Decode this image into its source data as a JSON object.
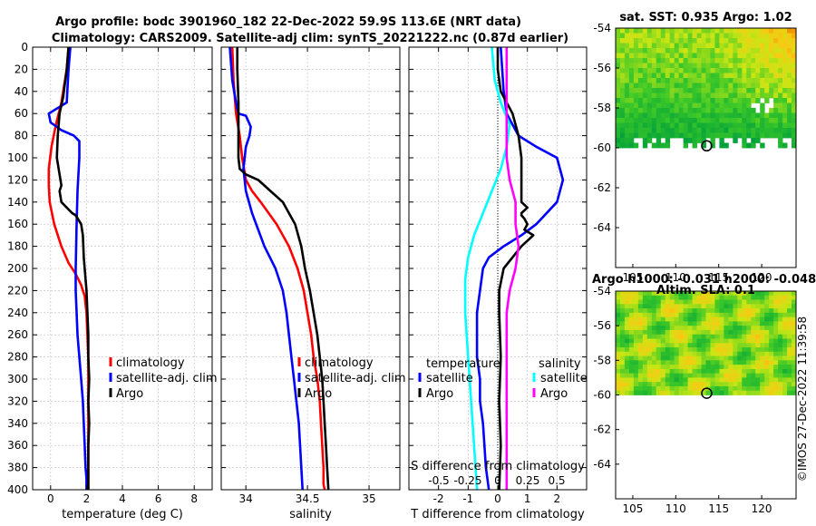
{
  "title": {
    "line1": "Argo profile: bodc 3901960_182 22-Dec-2022 59.9S 113.6E (NRT data)",
    "line2": "Climatology: CARS2009. Satellite-adj clim: synTS_20221222.nc (0.87d earlier)"
  },
  "copyright": "©IMOS 27-Dec-2022 11:39:58",
  "colors": {
    "climatology": "#ff0000",
    "satellite": "#0000ff",
    "argo": "#000000",
    "sat_salinity": "#00ffff",
    "argo_salinity": "#ff00ff",
    "map_land": "#ffffff"
  },
  "chart_data": [
    {
      "id": "temperature",
      "type": "line",
      "xlabel": "temperature (deg C)",
      "ylabel": "",
      "xlim": [
        -1,
        9
      ],
      "ylim": [
        400,
        0
      ],
      "xticks": [
        0,
        2,
        4,
        6,
        8
      ],
      "yticks": [
        0,
        20,
        40,
        60,
        80,
        100,
        120,
        140,
        160,
        180,
        200,
        220,
        240,
        260,
        280,
        300,
        320,
        340,
        360,
        380,
        400
      ],
      "legend": [
        "climatology",
        "satellite-adj. clim",
        "Argo"
      ],
      "series": [
        {
          "name": "climatology",
          "color": "#ff0000",
          "x": [
            1.0,
            0.9,
            0.6,
            0.3,
            0.05,
            -0.1,
            -0.1,
            -0.05,
            0.2,
            0.6,
            1.0,
            1.4,
            1.7,
            1.9,
            2.0,
            2.05,
            2.1,
            2.1,
            2.1,
            2.1,
            2.1,
            2.1,
            2.1,
            2.1,
            2.1
          ],
          "y": [
            0,
            20,
            50,
            70,
            90,
            110,
            125,
            140,
            160,
            180,
            195,
            205,
            215,
            225,
            240,
            260,
            280,
            300,
            320,
            340,
            360,
            380,
            390,
            395,
            400
          ]
        },
        {
          "name": "satellite-adj. clim",
          "color": "#0000ff",
          "x": [
            1.1,
            1.0,
            0.9,
            0.4,
            -0.1,
            0.0,
            0.6,
            1.3,
            1.6,
            1.6,
            1.5,
            1.45,
            1.4,
            1.4,
            1.45,
            1.5,
            1.6,
            1.7,
            1.8,
            1.85,
            1.9,
            1.95,
            2.0,
            2.0
          ],
          "y": [
            0,
            20,
            50,
            55,
            60,
            68,
            75,
            80,
            85,
            100,
            130,
            160,
            200,
            220,
            240,
            260,
            280,
            300,
            320,
            340,
            360,
            380,
            390,
            400
          ]
        },
        {
          "name": "Argo",
          "color": "#000000",
          "x": [
            1.0,
            0.9,
            0.7,
            0.5,
            0.4,
            0.35,
            0.5,
            0.6,
            0.5,
            0.6,
            0.9,
            1.2,
            1.4,
            1.7,
            1.8,
            1.85,
            1.9,
            2.0,
            2.05,
            2.1,
            2.1,
            2.15,
            2.1,
            2.15,
            2.1,
            2.1,
            2.1
          ],
          "y": [
            0,
            20,
            45,
            60,
            80,
            100,
            115,
            125,
            130,
            140,
            145,
            150,
            152,
            160,
            170,
            190,
            200,
            220,
            240,
            260,
            280,
            300,
            320,
            340,
            360,
            380,
            400
          ]
        }
      ]
    },
    {
      "id": "salinity",
      "type": "line",
      "xlabel": "salinity",
      "ylabel": "",
      "xlim": [
        33.8,
        35.25
      ],
      "ylim": [
        400,
        0
      ],
      "xticks": [
        34,
        34.5,
        35
      ],
      "legend": [
        "climatology",
        "satellite-adj. clim",
        "Argo"
      ],
      "series": [
        {
          "name": "climatology",
          "color": "#ff0000",
          "x": [
            33.89,
            33.9,
            33.92,
            33.95,
            33.97,
            34.0,
            34.05,
            34.12,
            34.25,
            34.35,
            34.42,
            34.47,
            34.5,
            34.53,
            34.55,
            34.58,
            34.6,
            34.61,
            34.62,
            34.63,
            34.63,
            34.64
          ],
          "y": [
            0,
            30,
            60,
            80,
            100,
            120,
            130,
            140,
            160,
            180,
            200,
            220,
            240,
            260,
            280,
            300,
            320,
            340,
            360,
            380,
            395,
            400
          ]
        },
        {
          "name": "satellite-adj. clim",
          "color": "#0000ff",
          "x": [
            33.87,
            33.89,
            33.92,
            33.94,
            34.0,
            34.04,
            34.03,
            34.0,
            33.98,
            34.0,
            34.05,
            34.15,
            34.24,
            34.3,
            34.33,
            34.35,
            34.37,
            34.39,
            34.41,
            34.43,
            34.46
          ],
          "y": [
            0,
            30,
            50,
            60,
            62,
            72,
            80,
            90,
            110,
            130,
            150,
            180,
            200,
            220,
            240,
            260,
            280,
            300,
            320,
            340,
            400
          ]
        },
        {
          "name": "Argo",
          "color": "#000000",
          "x": [
            33.93,
            33.93,
            33.94,
            33.94,
            33.94,
            33.95,
            34.0,
            34.1,
            34.2,
            34.3,
            34.35,
            34.4,
            34.45,
            34.48,
            34.52,
            34.55,
            34.58,
            34.6,
            34.62,
            34.63,
            34.64,
            34.65,
            34.66,
            34.67
          ],
          "y": [
            0,
            20,
            50,
            80,
            100,
            110,
            115,
            120,
            130,
            140,
            150,
            160,
            180,
            200,
            220,
            240,
            260,
            280,
            300,
            320,
            340,
            360,
            380,
            400
          ]
        }
      ]
    },
    {
      "id": "difference",
      "type": "line",
      "xlabel": "T difference from climatology",
      "top_xlabel": "S difference from climatology",
      "ylabel": "",
      "xlim": [
        -3,
        3
      ],
      "ylim": [
        400,
        0
      ],
      "xticks": [
        -2,
        -1,
        0,
        1,
        2
      ],
      "s_xticks": [
        "-0.5",
        "-0.25",
        "0",
        "0.25",
        "0.5"
      ],
      "legend_headers": [
        "temperature",
        "salinity"
      ],
      "legend": [
        "satellite",
        "Argo",
        "satellite",
        "Argo"
      ],
      "series": [
        {
          "name": "temperature satellite",
          "color": "#0000ff",
          "x": [
            0.1,
            0.2,
            0.3,
            0.5,
            0.7,
            1.3,
            2.0,
            2.2,
            2.0,
            1.3,
            0.8,
            0.2,
            -0.3,
            -0.5,
            -0.6,
            -0.7,
            -0.7,
            -0.7,
            -0.6,
            -0.6,
            -0.5,
            -0.4,
            -0.3
          ],
          "y": [
            0,
            40,
            60,
            70,
            80,
            90,
            100,
            120,
            140,
            160,
            170,
            180,
            190,
            200,
            220,
            240,
            260,
            280,
            300,
            320,
            340,
            380,
            400
          ]
        },
        {
          "name": "temperature Argo",
          "color": "#000000",
          "x": [
            0.0,
            0.0,
            0.1,
            0.5,
            0.7,
            0.8,
            0.8,
            0.8,
            0.8,
            1.0,
            0.8,
            0.8,
            0.9,
            1.0,
            0.9,
            1.2,
            0.8,
            0.2,
            0.05,
            0.05,
            0.1,
            0.05,
            0.1,
            0.05
          ],
          "y": [
            0,
            20,
            40,
            60,
            80,
            100,
            120,
            130,
            140,
            145,
            150,
            152,
            155,
            160,
            165,
            170,
            180,
            200,
            220,
            240,
            280,
            320,
            360,
            400
          ]
        },
        {
          "name": "salinity satellite",
          "color": "#00ffff",
          "x": [
            -0.2,
            -0.1,
            0.1,
            0.4,
            0.3,
            0.1,
            -0.2,
            -0.5,
            -0.8,
            -1.0,
            -1.1,
            -1.1,
            -1.0,
            -0.9,
            -0.8,
            -0.7
          ],
          "y": [
            0,
            30,
            50,
            70,
            90,
            110,
            130,
            150,
            170,
            190,
            210,
            240,
            280,
            320,
            360,
            400
          ]
        },
        {
          "name": "salinity Argo",
          "color": "#ff00ff",
          "x": [
            0.3,
            0.3,
            0.3,
            0.3,
            0.4,
            0.6,
            0.6,
            0.7,
            0.6,
            0.4,
            0.3,
            0.3,
            0.3,
            0.3,
            0.3,
            0.3,
            0.3
          ],
          "y": [
            0,
            40,
            80,
            100,
            120,
            140,
            160,
            180,
            200,
            220,
            240,
            260,
            280,
            320,
            360,
            380,
            400
          ]
        }
      ]
    },
    {
      "id": "sst_map",
      "type": "heatmap",
      "title": "sat. SST: 0.935 Argo: 1.02",
      "xlim": [
        103,
        124
      ],
      "ylim": [
        -66,
        -54
      ],
      "xticks": [
        105,
        110,
        115,
        120
      ],
      "yticks": [
        -54,
        -56,
        -58,
        -60,
        -62,
        -64
      ],
      "data_lat_range": [
        -60,
        -54
      ],
      "argo_position": {
        "lon": 113.6,
        "lat": -59.9
      }
    },
    {
      "id": "sla_map",
      "type": "heatmap",
      "title": "Altim. SLA: 0.1",
      "supertitle": "Argo h1000: -0.031 h2000: -0.048",
      "xlim": [
        103,
        124
      ],
      "ylim": [
        -66,
        -54
      ],
      "xticks": [
        105,
        110,
        115,
        120
      ],
      "yticks": [
        -54,
        -56,
        -58,
        -60,
        -62,
        -64
      ],
      "data_lat_range": [
        -60,
        -54
      ],
      "argo_position": {
        "lon": 113.6,
        "lat": -59.9
      }
    }
  ]
}
